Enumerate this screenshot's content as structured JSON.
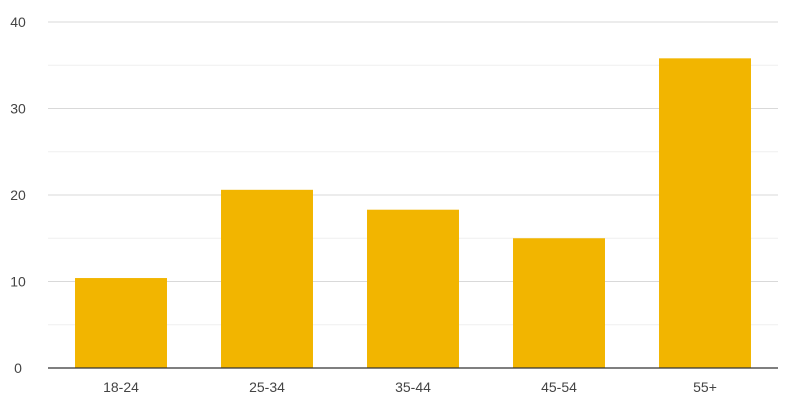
{
  "chart_data": {
    "type": "bar",
    "title": "",
    "xlabel": "",
    "ylabel": "",
    "categories": [
      "18-24",
      "25-34",
      "35-44",
      "45-54",
      "55+"
    ],
    "values": [
      10.4,
      20.6,
      18.3,
      15.0,
      35.8
    ],
    "ylim": [
      0,
      40
    ],
    "yticks": [
      "0",
      "10",
      "20",
      "30",
      "40"
    ],
    "minor_gridlines": true,
    "grid": true,
    "legend": "none",
    "bar_color": "#F2B500"
  }
}
